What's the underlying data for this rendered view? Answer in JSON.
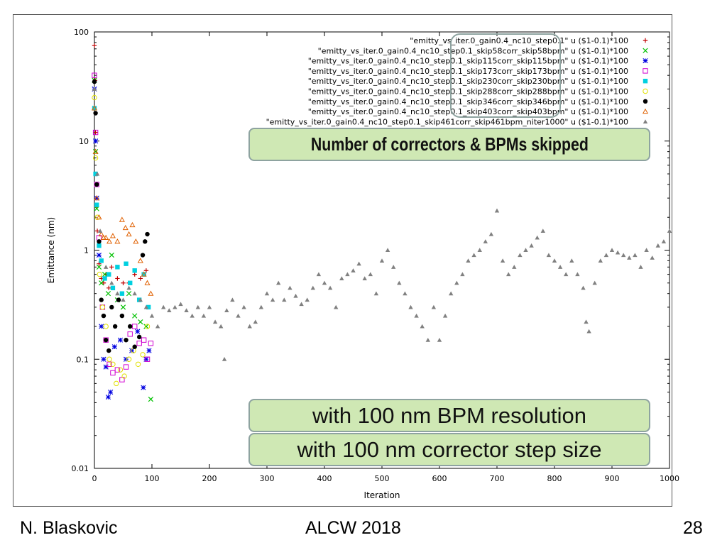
{
  "chart_data": {
    "type": "scatter",
    "xlabel": "Iteration",
    "ylabel": "Emittance (nm)",
    "xlim": [
      0,
      1000
    ],
    "ylim": [
      0.01,
      100
    ],
    "yscale": "log",
    "xticks": [
      "0",
      "100",
      "200",
      "300",
      "400",
      "500",
      "600",
      "700",
      "800",
      "900",
      "1000"
    ],
    "yticks": [
      "0.01",
      "0.1",
      "1",
      "10",
      "100"
    ],
    "legend_position": "top-right",
    "series": [
      {
        "name": "\"emitty_vs_iter.0_gain0.4_nc10_step0.1\" u ($1-0.1)*100",
        "marker": "+",
        "color": "#c00000",
        "x": [
          0,
          1,
          2,
          3,
          4,
          5,
          8,
          12,
          16,
          20,
          25,
          30,
          40,
          50,
          60,
          70,
          80,
          90
        ],
        "y": [
          75,
          36,
          12,
          5,
          2.5,
          1.5,
          0.75,
          0.55,
          0.5,
          0.6,
          0.45,
          0.7,
          0.55,
          0.5,
          0.5,
          0.6,
          0.55,
          0.65
        ]
      },
      {
        "name": "\"emitty_vs_iter.0_gain0.4_nc10_step0.1_skip58corr_skip58bpm\" u ($1-0.1)*100",
        "marker": "x",
        "color": "#00c000",
        "x": [
          0,
          2,
          4,
          8,
          12,
          18,
          24,
          30,
          40,
          50,
          60,
          70,
          80,
          90,
          98
        ],
        "y": [
          36,
          8,
          2.4,
          0.7,
          0.5,
          0.6,
          0.4,
          0.9,
          0.35,
          0.3,
          0.4,
          0.25,
          0.22,
          0.2,
          0.043
        ]
      },
      {
        "name": "\"emitty_vs_iter.0_gain0.4_nc10_step0.1_skip115corr_skip115bpm\" u ($1-0.1)*100",
        "marker": "*",
        "color": "#0000e0",
        "x": [
          0,
          2,
          4,
          8,
          12,
          16,
          20,
          24,
          28,
          35,
          45,
          55,
          65,
          75,
          85,
          90,
          95
        ],
        "y": [
          30,
          10,
          3,
          0.9,
          0.2,
          0.1,
          0.085,
          0.045,
          0.05,
          0.13,
          0.15,
          0.1,
          0.12,
          0.18,
          0.055,
          0.1,
          0.12
        ]
      },
      {
        "name": "\"emitty_vs_iter.0_gain0.4_nc10_step0.1_skip173corr_skip173bpm\" u ($1-0.1)*100",
        "marker": "square",
        "color": "#d000d0",
        "x": [
          0,
          2,
          4,
          8,
          14,
          20,
          26,
          32,
          40,
          48,
          55,
          62,
          70,
          78,
          86,
          92,
          98
        ],
        "y": [
          40,
          12,
          4,
          1.3,
          0.3,
          0.15,
          0.09,
          0.075,
          0.08,
          0.065,
          0.085,
          0.17,
          0.2,
          0.14,
          0.15,
          0.1,
          0.14
        ]
      },
      {
        "name": "\"emitty_vs_iter.0_gain0.4_nc10_step0.1_skip230corr_skip230bpm\" u ($1-0.1)*100",
        "marker": "filled-square",
        "color": "#00d0e0",
        "x": [
          0,
          2,
          4,
          8,
          12,
          18,
          25,
          32,
          40,
          48,
          55,
          62,
          70,
          78,
          86,
          94
        ],
        "y": [
          20,
          5,
          2.6,
          1.1,
          0.8,
          0.55,
          0.6,
          0.45,
          0.7,
          0.4,
          0.75,
          0.5,
          0.65,
          0.35,
          0.6,
          0.3
        ]
      },
      {
        "name": "\"emitty_vs_iter.0_gain0.4_nc10_step0.1_skip288corr_skip288bpm\" u ($1-0.1)*100",
        "marker": "circle",
        "color": "#e0e000",
        "x": [
          0,
          2,
          5,
          9,
          14,
          20,
          26,
          32,
          38,
          45,
          52,
          60,
          68,
          76,
          84,
          92
        ],
        "y": [
          25,
          7,
          2,
          0.6,
          0.3,
          0.2,
          0.1,
          0.09,
          0.06,
          0.08,
          0.07,
          0.1,
          0.12,
          0.09,
          0.11,
          0.2
        ]
      },
      {
        "name": "\"emitty_vs_iter.0_gain0.4_nc10_step0.1_skip346corr_skip346bpm\" u ($1-0.1)*100",
        "marker": "filled-circle",
        "color": "#000000",
        "x": [
          0,
          2,
          4,
          8,
          12,
          16,
          20,
          25,
          30,
          36,
          42,
          48,
          55,
          62,
          70,
          78,
          84,
          88,
          92
        ],
        "y": [
          35,
          18,
          4,
          1.2,
          0.35,
          0.25,
          0.15,
          0.12,
          0.3,
          0.2,
          0.35,
          0.25,
          0.15,
          0.2,
          0.13,
          0.16,
          0.9,
          1.2,
          1.4
        ]
      },
      {
        "name": "\"emitty_vs_iter.0_gain0.4_nc10_step0.1_skip403corr_skip403bpm\" u ($1-0.1)*100",
        "marker": "triangle",
        "color": "#e06000",
        "x": [
          0,
          2,
          4,
          8,
          12,
          16,
          20,
          26,
          32,
          40,
          48,
          54,
          60,
          66,
          72,
          80,
          86,
          92,
          98
        ],
        "y": [
          20,
          8,
          3,
          2,
          1.4,
          1.3,
          1.3,
          1.2,
          1.35,
          1.2,
          1.9,
          1.6,
          1.4,
          1.7,
          1.2,
          0.8,
          0.6,
          0.5,
          0.4
        ]
      },
      {
        "name": "\"emitty_vs_iter.0_gain0.4_nc10_step0.1_skip461corr_skip461bpm_niter1000\" u ($1-0.1)*100",
        "marker": "filled-triangle",
        "color": "#808080",
        "x": [
          0,
          5,
          10,
          20,
          30,
          40,
          50,
          60,
          70,
          80,
          90,
          100,
          110,
          120,
          130,
          140,
          150,
          160,
          170,
          180,
          190,
          200,
          210,
          220,
          226,
          230,
          240,
          250,
          260,
          270,
          280,
          290,
          300,
          310,
          320,
          330,
          340,
          350,
          360,
          370,
          380,
          390,
          400,
          410,
          420,
          430,
          440,
          450,
          460,
          470,
          480,
          490,
          500,
          510,
          520,
          530,
          540,
          550,
          560,
          570,
          580,
          590,
          600,
          610,
          620,
          630,
          640,
          650,
          660,
          670,
          680,
          690,
          700,
          710,
          720,
          730,
          740,
          750,
          760,
          770,
          780,
          790,
          800,
          810,
          820,
          830,
          840,
          850,
          855,
          860,
          870,
          880,
          890,
          900,
          910,
          920,
          930,
          940,
          950,
          960,
          970,
          980,
          990,
          1000
        ],
        "y": [
          30,
          5,
          1.5,
          0.7,
          0.5,
          0.4,
          0.35,
          0.45,
          0.4,
          0.35,
          0.3,
          0.25,
          0.2,
          0.3,
          0.28,
          0.3,
          0.32,
          0.28,
          0.25,
          0.3,
          0.25,
          0.3,
          0.22,
          0.2,
          0.1,
          0.28,
          0.35,
          0.25,
          0.3,
          0.2,
          0.22,
          0.3,
          0.4,
          0.35,
          0.5,
          0.35,
          0.45,
          0.38,
          0.32,
          0.35,
          0.45,
          0.6,
          0.5,
          0.45,
          0.3,
          0.55,
          0.6,
          0.65,
          0.75,
          0.55,
          0.6,
          0.4,
          0.8,
          1.0,
          0.7,
          0.5,
          0.4,
          0.3,
          0.25,
          0.2,
          0.15,
          0.3,
          0.15,
          0.25,
          0.4,
          0.5,
          0.6,
          0.8,
          0.9,
          1.0,
          1.2,
          1.4,
          2.3,
          0.8,
          0.6,
          0.7,
          0.9,
          1.0,
          1.1,
          1.3,
          1.5,
          0.9,
          0.8,
          0.7,
          0.6,
          0.8,
          0.6,
          0.45,
          0.22,
          0.18,
          0.5,
          0.8,
          0.9,
          1.0,
          0.95,
          0.9,
          0.85,
          0.9,
          0.7,
          1.0,
          0.85,
          1.1,
          1.2,
          1.5
        ]
      }
    ]
  },
  "annotations": {
    "main": "Number of correctors & BPMs skipped",
    "bpm": "with 100 nm BPM resolution",
    "step": "with 100 nm corrector step size"
  },
  "footer": {
    "author": "N. Blaskovic",
    "event": "ALCW 2018",
    "page": "28"
  }
}
